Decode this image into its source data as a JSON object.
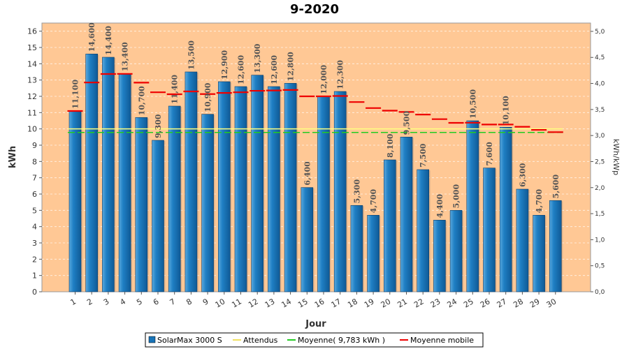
{
  "chart_data": {
    "type": "bar",
    "title": "9-2020",
    "xlabel": "Jour",
    "ylabel": "kWh",
    "y2label": "kWh/kWp",
    "ylim": [
      0,
      16.5
    ],
    "y2lim": [
      0,
      5.16
    ],
    "yticks": [
      "0",
      "1",
      "2",
      "3",
      "4",
      "5",
      "6",
      "7",
      "8",
      "9",
      "10",
      "11",
      "12",
      "13",
      "14",
      "15",
      "16"
    ],
    "y2ticks": [
      "0,0",
      "0,5",
      "1,0",
      "1,5",
      "2,0",
      "2,5",
      "3,0",
      "3,5",
      "4,0",
      "4,5",
      "5,0"
    ],
    "y2tick_values": [
      0,
      0.5,
      1.0,
      1.5,
      2.0,
      2.5,
      3.0,
      3.5,
      4.0,
      4.5,
      5.0
    ],
    "categories": [
      "1",
      "2",
      "3",
      "4",
      "5",
      "6",
      "7",
      "8",
      "9",
      "10",
      "11",
      "12",
      "13",
      "14",
      "15",
      "16",
      "17",
      "18",
      "19",
      "20",
      "21",
      "22",
      "23",
      "24",
      "25",
      "26",
      "27",
      "28",
      "29",
      "30"
    ],
    "series": [
      {
        "name": "SolarMax 3000 S",
        "values": [
          11.1,
          14.6,
          14.4,
          13.4,
          10.7,
          9.3,
          11.4,
          13.5,
          10.9,
          12.9,
          12.6,
          13.3,
          12.6,
          12.8,
          6.4,
          12.0,
          12.3,
          5.3,
          4.7,
          8.1,
          9.5,
          7.5,
          4.4,
          5.0,
          10.5,
          7.6,
          10.1,
          6.3,
          4.7,
          5.6
        ],
        "labels": [
          "11,100",
          "14,600",
          "14,400",
          "13,400",
          "10,700",
          "9,300",
          "11,400",
          "13,500",
          "10,900",
          "12,900",
          "12,600",
          "13,300",
          "12,600",
          "12,800",
          "6,400",
          "12,000",
          "12,300",
          "5,300",
          "4,700",
          "8,100",
          "9,500",
          "7,500",
          "4,400",
          "5,000",
          "10,500",
          "7,600",
          "10,100",
          "6,300",
          "4,700",
          "5,600"
        ],
        "color": "#1874b8"
      },
      {
        "name": "Attendus",
        "values": [
          10.0,
          10.0,
          10.0,
          10.0,
          10.0,
          10.0,
          10.0,
          10.0,
          10.0,
          10.0,
          10.0,
          10.0,
          10.0,
          10.0,
          10.0,
          10.0,
          10.0,
          10.0,
          10.0,
          10.0,
          10.0,
          10.0,
          10.0,
          10.0,
          10.0,
          10.0,
          10.0,
          10.0,
          10.0,
          10.0
        ],
        "color": "#ffff80"
      },
      {
        "name": "Moyenne( 9,783 kWh )",
        "values": [
          9.783,
          9.783,
          9.783,
          9.783,
          9.783,
          9.783,
          9.783,
          9.783,
          9.783,
          9.783,
          9.783,
          9.783,
          9.783,
          9.783,
          9.783,
          9.783,
          9.783,
          9.783,
          9.783,
          9.783,
          9.783,
          9.783,
          9.783,
          9.783,
          9.783,
          9.783,
          9.783,
          9.783,
          9.783,
          9.783
        ],
        "color": "#22cc22"
      },
      {
        "name": "Moyenne mobile",
        "values": [
          11.1,
          12.85,
          13.37,
          13.38,
          12.84,
          12.25,
          12.13,
          12.3,
          12.14,
          12.21,
          12.25,
          12.34,
          12.36,
          12.39,
          12.0,
          12.0,
          12.02,
          11.65,
          11.28,
          11.12,
          11.04,
          10.88,
          10.6,
          10.37,
          10.38,
          10.27,
          10.27,
          10.13,
          9.94,
          9.8
        ],
        "color": "#ee0000"
      }
    ],
    "legend": "bottom",
    "grid": true,
    "background": "#ffc895"
  }
}
